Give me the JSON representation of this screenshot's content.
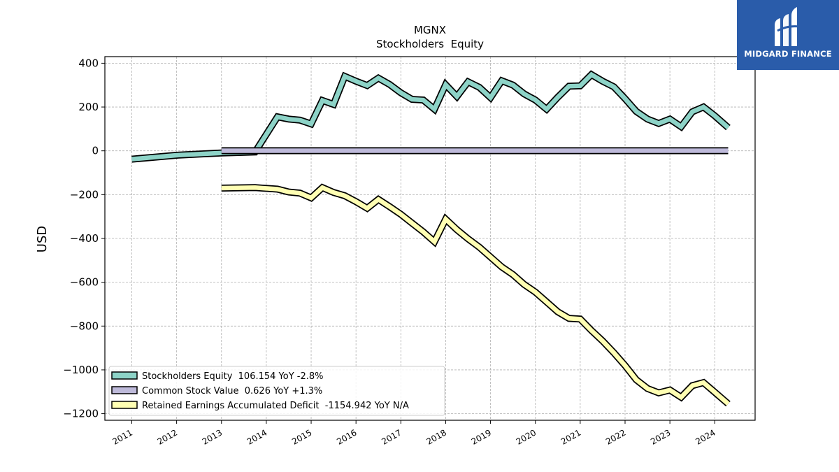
{
  "brand": {
    "name": "MIDGARD FINANCE",
    "bg_color": "#2a5caa"
  },
  "chart_data": {
    "type": "line",
    "title": "MGNX",
    "subtitle": "Stockholders  Equity",
    "xlabel": "",
    "ylabel": "USD",
    "xlim": [
      2010.4,
      2024.9
    ],
    "ylim": [
      -1230,
      430
    ],
    "xticks": [
      "2011",
      "2012",
      "2013",
      "2014",
      "2015",
      "2016",
      "2017",
      "2018",
      "2019",
      "2020",
      "2021",
      "2022",
      "2023",
      "2024"
    ],
    "yticks": [
      400,
      200,
      0,
      -200,
      -400,
      -600,
      -800,
      -1000,
      -1200
    ],
    "ytick_labels": [
      "400",
      "200",
      "0",
      "−200",
      "−400",
      "−600",
      "−800",
      "−1000",
      "−1200"
    ],
    "grid": true,
    "legend_position": "lower-left",
    "series": [
      {
        "name": "Stockholders Equity  106.154 YoY -2.8%",
        "color": "#8dd3c7",
        "x": [
          2011.0,
          2012.0,
          2013.0,
          2013.75,
          2014.0,
          2014.25,
          2014.5,
          2014.75,
          2015.0,
          2015.25,
          2015.5,
          2015.75,
          2016.0,
          2016.25,
          2016.5,
          2016.75,
          2017.0,
          2017.25,
          2017.5,
          2017.75,
          2018.0,
          2018.25,
          2018.5,
          2018.75,
          2019.0,
          2019.25,
          2019.5,
          2019.75,
          2020.0,
          2020.25,
          2020.5,
          2020.75,
          2021.0,
          2021.25,
          2021.5,
          2021.75,
          2022.0,
          2022.25,
          2022.5,
          2022.75,
          2023.0,
          2023.25,
          2023.5,
          2023.75,
          2024.0,
          2024.3
        ],
        "y": [
          -38,
          -20,
          -10,
          -5,
          75,
          155,
          145,
          140,
          123,
          230,
          212,
          340,
          318,
          298,
          332,
          303,
          265,
          235,
          232,
          190,
          302,
          248,
          315,
          290,
          243,
          320,
          300,
          260,
          232,
          190,
          245,
          295,
          297,
          348,
          318,
          292,
          238,
          180,
          145,
          125,
          145,
          110,
          178,
          200,
          160,
          106
        ]
      },
      {
        "name": "Common Stock Value  0.626 YoY +1.3%",
        "color": "#bebada",
        "x": [
          2013.0,
          2024.3
        ],
        "y": [
          0.6,
          0.6
        ]
      },
      {
        "name": "Retained Earnings Accumulated Deficit  -1154.942 YoY N/A",
        "color": "#ffffb3",
        "x": [
          2013.0,
          2013.75,
          2014.25,
          2014.5,
          2014.75,
          2015.0,
          2015.25,
          2015.5,
          2015.75,
          2016.0,
          2016.25,
          2016.5,
          2016.75,
          2017.0,
          2017.25,
          2017.5,
          2017.75,
          2018.0,
          2018.25,
          2018.5,
          2018.75,
          2019.0,
          2019.25,
          2019.5,
          2019.75,
          2020.0,
          2020.25,
          2020.5,
          2020.75,
          2021.0,
          2021.25,
          2021.5,
          2021.75,
          2022.0,
          2022.25,
          2022.5,
          2022.75,
          2023.0,
          2023.25,
          2023.5,
          2023.75,
          2024.0,
          2024.3
        ],
        "y": [
          -170,
          -168,
          -175,
          -188,
          -193,
          -215,
          -168,
          -190,
          -205,
          -232,
          -262,
          -222,
          -255,
          -290,
          -330,
          -370,
          -415,
          -312,
          -360,
          -402,
          -440,
          -485,
          -530,
          -565,
          -610,
          -645,
          -690,
          -735,
          -765,
          -768,
          -820,
          -868,
          -922,
          -980,
          -1045,
          -1085,
          -1105,
          -1092,
          -1125,
          -1072,
          -1058,
          -1102,
          -1155
        ]
      }
    ]
  }
}
